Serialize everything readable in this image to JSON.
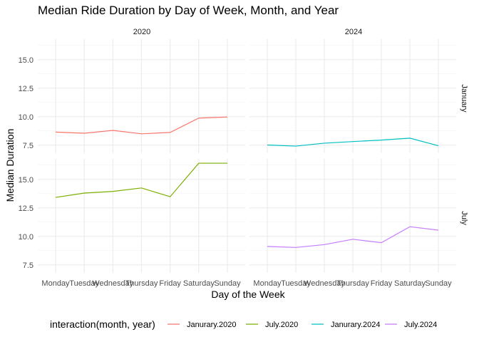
{
  "chart_data": {
    "type": "line",
    "title": "Median Ride Duration by Day of Week, Month, and Year",
    "xlabel": "Day of the Week",
    "ylabel": "Median Duration",
    "categories": [
      "Monday",
      "Tuesday",
      "Wednesday",
      "Thursday",
      "Friday",
      "Saturday",
      "Sunday"
    ],
    "facet_cols": [
      "2020",
      "2024"
    ],
    "facet_rows": [
      "January",
      "July"
    ],
    "legend_title": "interaction(month, year)",
    "legend_position": "bottom",
    "grid": true,
    "panels": [
      {
        "row": 0,
        "col": 0,
        "ylim": [
          6.8,
          16.8
        ],
        "yticks": [
          7.5,
          10.0,
          12.5,
          15.0
        ],
        "series": [
          {
            "name": "Janurary.2020",
            "color": "#F8766D",
            "values": [
              8.65,
              8.55,
              8.8,
              8.5,
              8.62,
              9.88,
              9.97
            ]
          }
        ]
      },
      {
        "row": 0,
        "col": 1,
        "ylim": [
          6.8,
          16.8
        ],
        "yticks": [
          7.5,
          10.0,
          12.5,
          15.0
        ],
        "series": [
          {
            "name": "Janurary.2024",
            "color": "#00BFC4",
            "values": [
              7.52,
              7.42,
              7.68,
              7.82,
              7.95,
              8.12,
              7.45
            ]
          }
        ]
      },
      {
        "row": 1,
        "col": 0,
        "ylim": [
          6.8,
          16.8
        ],
        "yticks": [
          7.5,
          10.0,
          12.5,
          15.0
        ],
        "series": [
          {
            "name": "July.2020",
            "color": "#7CAE00",
            "values": [
              13.42,
              13.8,
              13.95,
              14.25,
              13.48,
              16.42,
              16.42
            ]
          }
        ]
      },
      {
        "row": 1,
        "col": 1,
        "ylim": [
          6.8,
          16.8
        ],
        "yticks": [
          7.5,
          10.0,
          12.5,
          15.0
        ],
        "series": [
          {
            "name": "July.2024",
            "color": "#C77CFF",
            "values": [
              9.12,
              9.03,
              9.28,
              9.75,
              9.45,
              10.85,
              10.55
            ]
          }
        ]
      }
    ],
    "legend": [
      {
        "name": "Janurary.2020",
        "color": "#F8766D"
      },
      {
        "name": "July.2020",
        "color": "#7CAE00"
      },
      {
        "name": "Janurary.2024",
        "color": "#00BFC4"
      },
      {
        "name": "July.2024",
        "color": "#C77CFF"
      }
    ]
  }
}
